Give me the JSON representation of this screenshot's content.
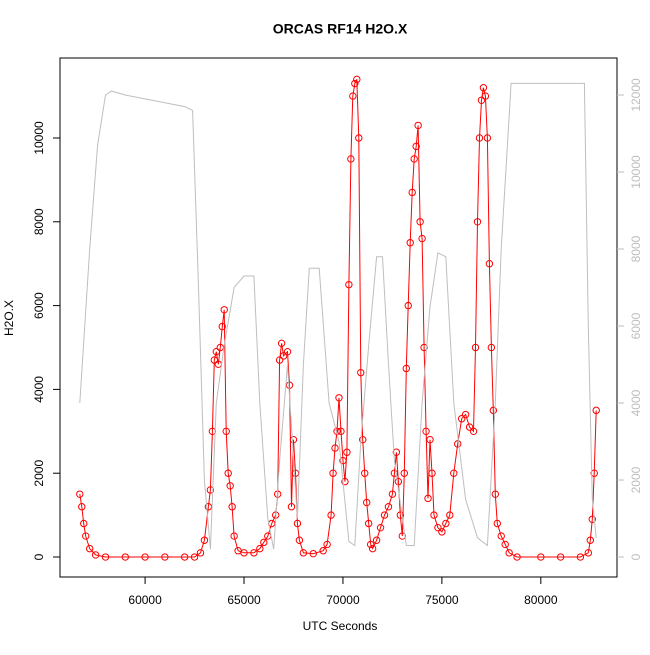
{
  "chart_data": {
    "type": "line-points",
    "title": "ORCAS RF14 H2O.X",
    "xlabel": "UTC Seconds",
    "ylabel": "H2O.X",
    "xlim": [
      55700,
      83850
    ],
    "xticks": [
      60000,
      65000,
      70000,
      75000,
      80000
    ],
    "ylim": [
      -477,
      11909
    ],
    "yticks": [
      0,
      2000,
      4000,
      6000,
      8000,
      10000
    ],
    "y2lim": [
      -519,
      12961
    ],
    "y2ticks": [
      0,
      2000,
      4000,
      6000,
      8000,
      10000,
      12000
    ],
    "series": [
      {
        "name": "H2O.X",
        "color": "#ff0000",
        "x": [
          56700,
          56800,
          56900,
          57000,
          57200,
          57500,
          58000,
          59000,
          60000,
          61000,
          62000,
          62500,
          62800,
          63000,
          63200,
          63300,
          63400,
          63500,
          63600,
          63700,
          63800,
          63900,
          64000,
          64100,
          64200,
          64300,
          64400,
          64500,
          64700,
          65000,
          65500,
          65800,
          66000,
          66200,
          66400,
          66600,
          66700,
          66800,
          66900,
          67000,
          67200,
          67300,
          67400,
          67500,
          67600,
          67700,
          67800,
          68000,
          68500,
          69000,
          69200,
          69400,
          69500,
          69600,
          69700,
          69800,
          69900,
          70000,
          70100,
          70200,
          70300,
          70400,
          70500,
          70600,
          70700,
          70800,
          70900,
          71000,
          71100,
          71200,
          71300,
          71400,
          71500,
          71700,
          71900,
          72100,
          72300,
          72500,
          72600,
          72700,
          72800,
          72900,
          73000,
          73100,
          73200,
          73300,
          73400,
          73500,
          73600,
          73700,
          73800,
          73900,
          74000,
          74100,
          74200,
          74300,
          74400,
          74500,
          74600,
          74800,
          75000,
          75200,
          75400,
          75600,
          75800,
          76000,
          76200,
          76400,
          76600,
          76700,
          76800,
          76900,
          77000,
          77100,
          77200,
          77300,
          77400,
          77500,
          77600,
          77700,
          77800,
          78000,
          78200,
          78400,
          78800,
          80000,
          81000,
          82000,
          82400,
          82500,
          82600,
          82700,
          82800
        ],
        "values": [
          1500,
          1200,
          800,
          500,
          200,
          50,
          0,
          0,
          0,
          0,
          0,
          0,
          100,
          400,
          1200,
          1600,
          3000,
          4700,
          4900,
          4600,
          5000,
          5500,
          5900,
          3000,
          2000,
          1700,
          1200,
          500,
          150,
          100,
          100,
          200,
          350,
          500,
          800,
          1000,
          1500,
          4700,
          5100,
          4800,
          4900,
          4100,
          1200,
          2800,
          2000,
          800,
          400,
          100,
          80,
          150,
          300,
          1000,
          2000,
          2600,
          3000,
          3800,
          3000,
          2300,
          1800,
          2500,
          6500,
          9500,
          11000,
          11300,
          11400,
          10000,
          4400,
          2800,
          2000,
          1300,
          800,
          300,
          200,
          400,
          700,
          1000,
          1200,
          1500,
          2000,
          2500,
          1800,
          1000,
          500,
          2000,
          4500,
          6000,
          7500,
          8700,
          9500,
          9800,
          10300,
          8000,
          7600,
          5000,
          3000,
          1400,
          2800,
          2000,
          1000,
          700,
          600,
          800,
          1000,
          2000,
          2700,
          3300,
          3400,
          3100,
          3000,
          5000,
          8000,
          10000,
          10900,
          11200,
          11000,
          10000,
          7000,
          5000,
          3500,
          1500,
          800,
          500,
          300,
          100,
          0,
          0,
          0,
          0,
          100,
          400,
          900,
          2000,
          3500
        ]
      },
      {
        "color": "#bebebe",
        "axis": "y2",
        "x": [
          56700,
          57200,
          57600,
          58000,
          58300,
          59000,
          60000,
          61000,
          62000,
          62400,
          62700,
          63000,
          63300,
          63600,
          64000,
          64500,
          65000,
          65500,
          65800,
          66200,
          66500,
          66800,
          67200,
          67700,
          68000,
          68300,
          68800,
          69300,
          69800,
          70300,
          70600,
          70900,
          71300,
          71700,
          72000,
          72300,
          72600,
          73200,
          73600,
          74000,
          74400,
          74800,
          75200,
          75600,
          76200,
          76800,
          77300,
          77700,
          78000,
          78500,
          79500,
          80500,
          81500,
          82200,
          82400,
          82600,
          82800
        ],
        "values": [
          4000,
          8000,
          10700,
          12000,
          12100,
          12000,
          11900,
          11800,
          11700,
          11600,
          7000,
          2000,
          200,
          4000,
          5500,
          7000,
          7300,
          7300,
          4000,
          1000,
          200,
          2500,
          5000,
          1000,
          5000,
          7500,
          7500,
          4000,
          3000,
          400,
          300,
          3000,
          5500,
          7800,
          7800,
          5000,
          2500,
          300,
          300,
          4000,
          6500,
          7900,
          7800,
          4000,
          1500,
          500,
          300,
          4000,
          8000,
          12300,
          12300,
          12300,
          12300,
          12300,
          6000,
          1500,
          500
        ]
      }
    ]
  }
}
